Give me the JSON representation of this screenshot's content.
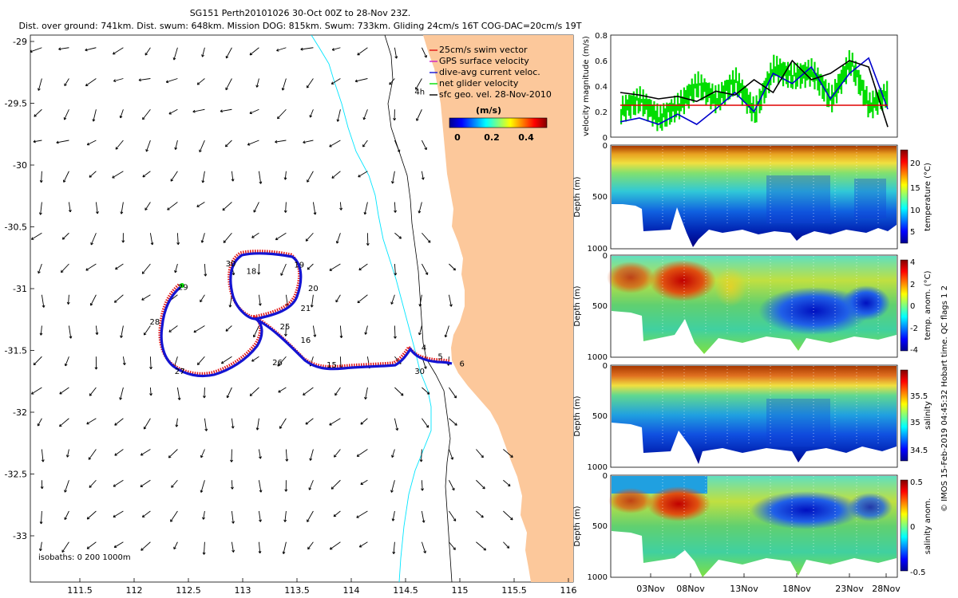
{
  "header": {
    "line1": "SG151 Perth20101026 30-Oct 00Z to 28-Nov 23Z.",
    "line2": "Dist. over ground: 741km. Dist. swum: 648km. Mission DOG: 815km. Swum: 733km. Gliding 24cm/s 16T COG-DAC=20cm/s 19T"
  },
  "colors": {
    "land": "#fcc89b",
    "isobath200": "#000000",
    "isobath1000": "#00e5ff",
    "track": "#1414d2",
    "swim": "#e11414",
    "gps": "#c81ec8",
    "net": "#00dd00",
    "vmag_dac": "#0000cc",
    "vmag_geo": "#000000",
    "vmag_ref": "#e00000"
  },
  "map": {
    "legend": [
      {
        "label": "25cm/s swim vector",
        "color": "#e11414"
      },
      {
        "label": "GPS surface velocity",
        "color": "#c81ec8"
      },
      {
        "label": "dive-avg current veloc.",
        "color": "#1414d2"
      },
      {
        "label": "net glider velocity",
        "color": "#00dd00"
      },
      {
        "label": "sfc geo. vel. 28-Nov-2010",
        "color": "#000000"
      }
    ],
    "colorbar": {
      "title": "(m/s)",
      "ticks": [
        "0",
        "0.2",
        "0.4"
      ]
    },
    "isobath_note": "isobaths: 0   200  1000m",
    "lon_ticks": [
      "111.5",
      "112",
      "112.5",
      "113",
      "113.5",
      "114",
      "114.5",
      "115",
      "115.5",
      "116"
    ],
    "lat_ticks": [
      "-29",
      "-29.5",
      "-30",
      "-30.5",
      "-31",
      "-31.5",
      "-32",
      "-32.5",
      "-33"
    ],
    "day_labels": [
      {
        "text": "30",
        "lon": 112.89,
        "lat": -30.82
      },
      {
        "text": "18",
        "lon": 113.08,
        "lat": -30.88
      },
      {
        "text": "19",
        "lon": 113.52,
        "lat": -30.83
      },
      {
        "text": "20",
        "lon": 113.65,
        "lat": -31.02
      },
      {
        "text": "29",
        "lon": 112.45,
        "lat": -31.01
      },
      {
        "text": "21",
        "lon": 113.58,
        "lat": -31.18
      },
      {
        "text": "28",
        "lon": 112.19,
        "lat": -31.29
      },
      {
        "text": "25",
        "lon": 113.39,
        "lat": -31.33
      },
      {
        "text": "16",
        "lon": 113.58,
        "lat": -31.44
      },
      {
        "text": "26",
        "lon": 113.32,
        "lat": -31.62
      },
      {
        "text": "27",
        "lon": 112.42,
        "lat": -31.69
      },
      {
        "text": "15",
        "lon": 113.82,
        "lat": -31.64
      },
      {
        "text": "4",
        "lon": 114.67,
        "lat": -31.5
      },
      {
        "text": "5",
        "lon": 114.82,
        "lat": -31.57
      },
      {
        "text": "6",
        "lon": 115.02,
        "lat": -31.63
      },
      {
        "text": "30",
        "lon": 114.63,
        "lat": -31.69
      },
      {
        "text": "4h",
        "lon": 114.63,
        "lat": -29.43
      }
    ]
  },
  "chart_data": [
    {
      "type": "line",
      "title": "",
      "ylabel": "velocity magnitude (m/s)",
      "ylim": [
        0,
        0.8
      ],
      "yticks": [
        "0",
        "0.2",
        "0.4",
        "0.6",
        "0.8"
      ],
      "x_days": [
        1,
        3,
        5,
        7,
        9,
        11,
        13,
        15,
        17,
        19,
        21,
        23,
        25,
        27,
        29
      ],
      "series": [
        {
          "name": "net glider velocity",
          "values": [
            0.22,
            0.3,
            0.15,
            0.25,
            0.42,
            0.3,
            0.45,
            0.2,
            0.55,
            0.48,
            0.52,
            0.3,
            0.6,
            0.25,
            0.35
          ]
        },
        {
          "name": "dive-avg current veloc.",
          "values": [
            0.12,
            0.15,
            0.1,
            0.18,
            0.1,
            0.22,
            0.35,
            0.2,
            0.5,
            0.42,
            0.55,
            0.3,
            0.5,
            0.62,
            0.22
          ]
        },
        {
          "name": "sfc geo. vel.",
          "values": [
            0.35,
            0.33,
            0.3,
            0.32,
            0.28,
            0.36,
            0.33,
            0.45,
            0.35,
            0.6,
            0.45,
            0.5,
            0.6,
            0.55,
            0.08
          ]
        },
        {
          "name": "25cm/s reference",
          "values": [
            0.25,
            0.25,
            0.25,
            0.25,
            0.25,
            0.25,
            0.25,
            0.25,
            0.25,
            0.25,
            0.25,
            0.25,
            0.25,
            0.25,
            0.25
          ]
        }
      ]
    },
    {
      "type": "heatmap",
      "ylabel": "Depth (m)",
      "yticks": [
        "0",
        "500",
        "1000"
      ],
      "colorbar_label": "temperature (°C)",
      "colorbar_ticks": [
        "20",
        "15",
        "10",
        "5"
      ],
      "clim": [
        3,
        22
      ]
    },
    {
      "type": "heatmap",
      "ylabel": "Depth (m)",
      "yticks": [
        "0",
        "500",
        "1000"
      ],
      "colorbar_label": "temp. anom. (°C)",
      "colorbar_ticks": [
        "4",
        "2",
        "0",
        "-2",
        "-4"
      ],
      "clim": [
        -4,
        4
      ]
    },
    {
      "type": "heatmap",
      "ylabel": "Depth (m)",
      "yticks": [
        "0",
        "500",
        "1000"
      ],
      "colorbar_label": "salinity",
      "colorbar_ticks": [
        "35.5",
        "35",
        "34.5"
      ],
      "clim": [
        34.3,
        35.8
      ]
    },
    {
      "type": "heatmap",
      "ylabel": "Depth (m)",
      "yticks": [
        "0",
        "500",
        "1000"
      ],
      "colorbar_label": "salinity anom.",
      "colorbar_ticks": [
        "0.5",
        "0",
        "-0.5"
      ],
      "clim": [
        -0.5,
        0.5
      ],
      "xticks": [
        "03Nov",
        "08Nov",
        "13Nov",
        "18Nov",
        "23Nov",
        "28Nov"
      ]
    }
  ],
  "footer": {
    "credit": "© IMOS 15-Feb-2019 04:45:32 Hobart time. QC flags 1  2"
  }
}
